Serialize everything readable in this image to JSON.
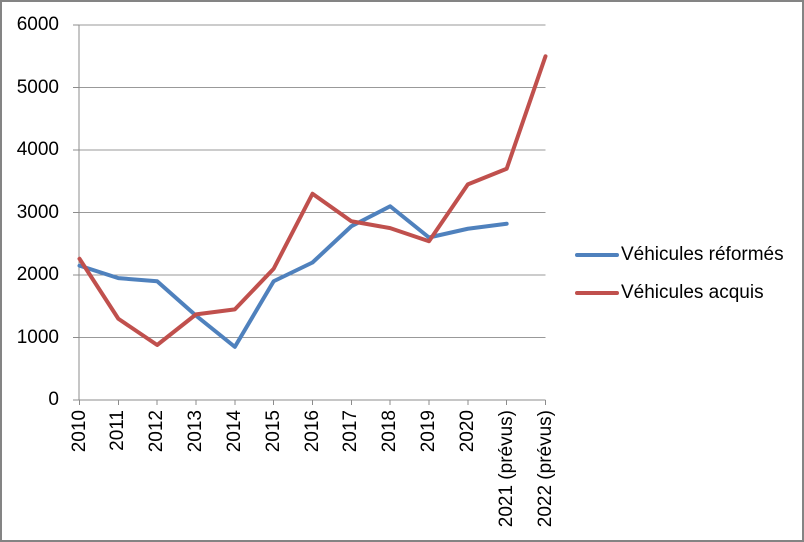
{
  "chart_data": {
    "type": "line",
    "title": "",
    "xlabel": "",
    "ylabel": "",
    "categories": [
      "2010",
      "2011",
      "2012",
      "2013",
      "2014",
      "2015",
      "2016",
      "2017",
      "2018",
      "2019",
      "2020",
      "2021 (prévus)",
      "2022 (prévus)"
    ],
    "series": [
      {
        "name": "Véhicules réformés",
        "color": "#4F81BD",
        "values": [
          2150,
          1950,
          1900,
          1350,
          850,
          1900,
          2200,
          2780,
          3100,
          2600,
          2740,
          2820,
          null
        ]
      },
      {
        "name": "Véhicules acquis",
        "color": "#C0504D",
        "values": [
          2260,
          1300,
          880,
          1370,
          1450,
          2100,
          3300,
          2860,
          2750,
          2540,
          3450,
          3700,
          5500
        ]
      }
    ],
    "ylim": [
      0,
      6000
    ],
    "y_ticks": [
      0,
      1000,
      2000,
      3000,
      4000,
      5000,
      6000
    ],
    "grid": true,
    "legend_position": "right",
    "line_width": 4,
    "colors": {
      "gridline": "#999999",
      "axis": "#8C8C8C",
      "text": "#000000",
      "background": "#FFFFFF",
      "frame_border": "#848484"
    }
  }
}
